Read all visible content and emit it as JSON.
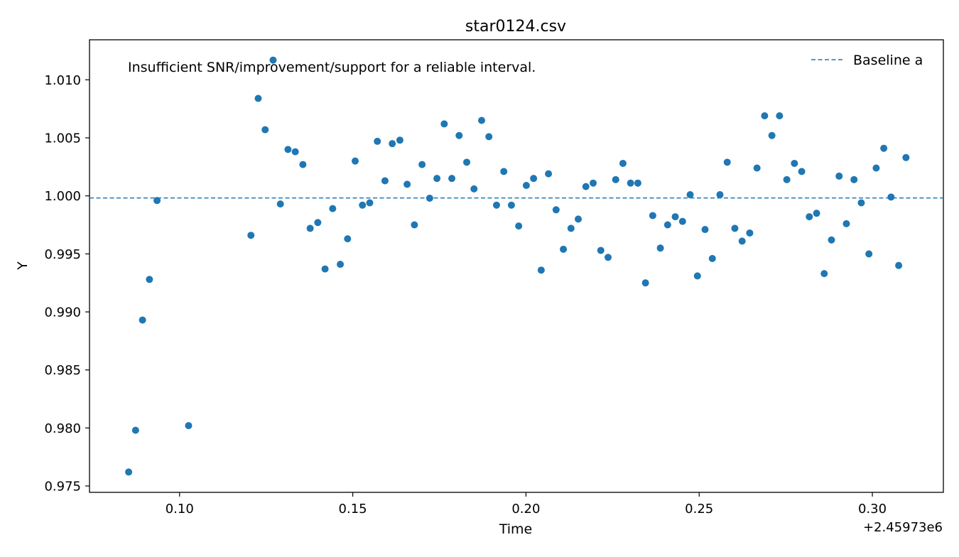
{
  "chart_data": {
    "type": "scatter",
    "title": "star0124.csv",
    "xlabel": "Time",
    "ylabel": "Y",
    "x_offset_label": "+2.45973e6",
    "xlim": [
      0.074,
      0.3205
    ],
    "ylim": [
      0.97445,
      1.01345
    ],
    "xticks": [
      0.1,
      0.15,
      0.2,
      0.25,
      0.3
    ],
    "xtick_labels": [
      "0.10",
      "0.15",
      "0.20",
      "0.25",
      "0.30"
    ],
    "yticks": [
      0.975,
      0.98,
      0.985,
      0.99,
      0.995,
      1.0,
      1.005,
      1.01
    ],
    "ytick_labels": [
      "0.975",
      "0.980",
      "0.985",
      "0.990",
      "0.995",
      "1.000",
      "1.005",
      "1.010"
    ],
    "grid": false,
    "annotation": "Insufficient SNR/improvement/support for a reliable interval.",
    "legend": {
      "position": "top-right",
      "entries": [
        "Baseline a"
      ]
    },
    "baseline": {
      "name": "Baseline a",
      "y": 0.99982,
      "style": "dashed",
      "color": "#1f77b4"
    },
    "series": [
      {
        "marker_color": "#1f77b4",
        "x": [
          0.0853,
          0.0873,
          0.0893,
          0.0913,
          0.0935,
          0.1026,
          0.1206,
          0.1227,
          0.1247,
          0.127,
          0.1291,
          0.1313,
          0.1334,
          0.1356,
          0.1377,
          0.1399,
          0.142,
          0.1442,
          0.1464,
          0.1485,
          0.1507,
          0.1528,
          0.1549,
          0.1571,
          0.1593,
          0.1614,
          0.1636,
          0.1657,
          0.1678,
          0.17,
          0.1722,
          0.1743,
          0.1764,
          0.1786,
          0.1807,
          0.1829,
          0.185,
          0.1872,
          0.1893,
          0.1915,
          0.1936,
          0.1958,
          0.1979,
          0.2001,
          0.2022,
          0.2044,
          0.2065,
          0.2087,
          0.2108,
          0.213,
          0.2151,
          0.2173,
          0.2194,
          0.2216,
          0.2237,
          0.2259,
          0.228,
          0.2302,
          0.2323,
          0.2345,
          0.2366,
          0.2388,
          0.2409,
          0.2431,
          0.2452,
          0.2474,
          0.2495,
          0.2517,
          0.2538,
          0.256,
          0.2581,
          0.2603,
          0.2624,
          0.2646,
          0.2667,
          0.2689,
          0.271,
          0.2732,
          0.2753,
          0.2775,
          0.2796,
          0.2818,
          0.2839,
          0.2861,
          0.2882,
          0.2904,
          0.2925,
          0.2947,
          0.2968,
          0.299,
          0.3011,
          0.3033,
          0.3054,
          0.3076,
          0.3097
        ],
        "y": [
          0.9762,
          0.9798,
          0.9893,
          0.9928,
          0.9996,
          0.9802,
          0.9966,
          1.0084,
          1.0057,
          1.0117,
          0.9993,
          1.004,
          1.0038,
          1.0027,
          0.9972,
          0.9977,
          0.9937,
          0.9989,
          0.9941,
          0.9963,
          1.003,
          0.9992,
          0.9994,
          1.0047,
          1.0013,
          1.0045,
          1.0048,
          1.001,
          0.9975,
          1.0027,
          0.9998,
          1.0015,
          1.0062,
          1.0015,
          1.0052,
          1.0029,
          1.0006,
          1.0065,
          1.0051,
          0.9992,
          1.0021,
          0.9992,
          0.9974,
          1.0009,
          1.0015,
          0.9936,
          1.0019,
          0.9988,
          0.9954,
          0.9972,
          0.998,
          1.0008,
          1.0011,
          0.9953,
          0.9947,
          1.0014,
          1.0028,
          1.0011,
          1.0011,
          0.9925,
          0.9983,
          0.9955,
          0.9975,
          0.9982,
          0.9978,
          1.0001,
          0.9931,
          0.9971,
          0.9946,
          1.0001,
          1.0029,
          0.9972,
          0.9961,
          0.9968,
          1.0024,
          1.0069,
          1.0052,
          1.0069,
          1.0014,
          1.0028,
          1.0021,
          0.9982,
          0.9985,
          0.9933,
          0.9962,
          1.0017,
          0.9976,
          1.0014,
          0.9994,
          0.995,
          1.0024,
          1.0041,
          0.9999,
          0.994,
          1.0033
        ]
      }
    ]
  }
}
